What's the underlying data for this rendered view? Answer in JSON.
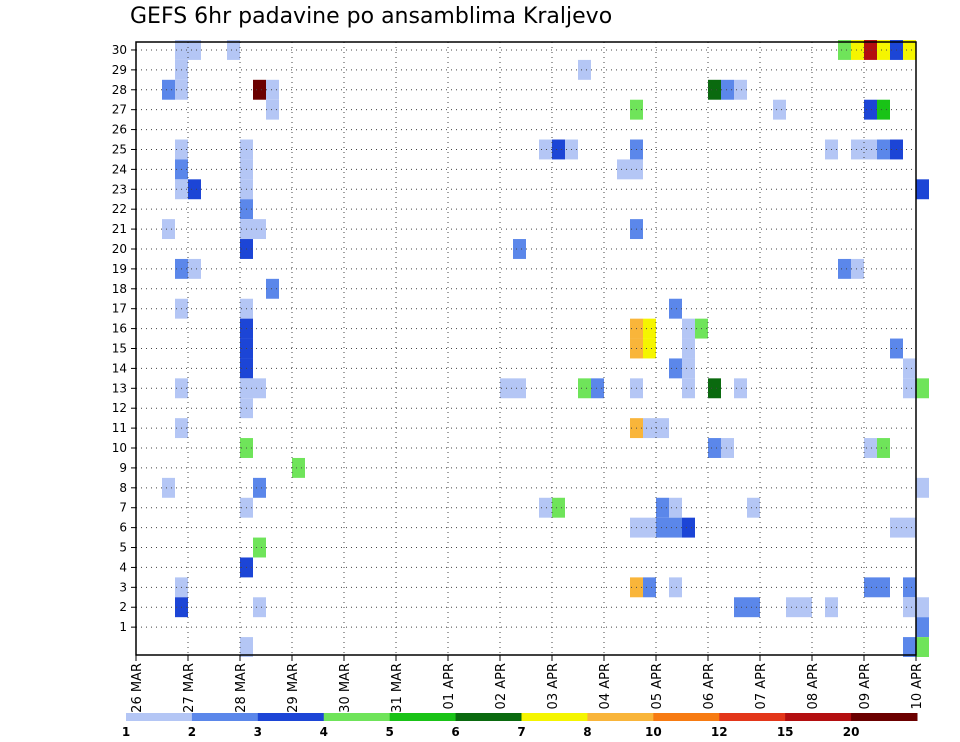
{
  "title": "GEFS 6hr padavine po ansamblima Kraljevo",
  "chart_data": {
    "type": "heatmap",
    "title": "GEFS 6hr padavine po ansamblima Kraljevo",
    "xlabel": "",
    "ylabel": "",
    "x_ticks": [
      "26 MAR",
      "27 MAR",
      "28 MAR",
      "29 MAR",
      "30 MAR",
      "31 MAR",
      "01 APR",
      "02 APR",
      "03 APR",
      "04 APR",
      "05 APR",
      "06 APR",
      "07 APR",
      "08 APR",
      "09 APR",
      "10 APR"
    ],
    "y_ticks": [
      1,
      2,
      3,
      4,
      5,
      6,
      7,
      8,
      9,
      10,
      11,
      12,
      13,
      14,
      15,
      16,
      17,
      18,
      19,
      20,
      21,
      22,
      23,
      24,
      25,
      26,
      27,
      28,
      29,
      30
    ],
    "ylim": [
      0,
      30
    ],
    "steps_per_day": 4,
    "grid": true,
    "legend": {
      "placement": "bottom",
      "labels": [
        "1",
        "2",
        "3",
        "4",
        "5",
        "6",
        "7",
        "8",
        "10",
        "12",
        "15",
        "20"
      ],
      "colors": [
        "#b4c6f5",
        "#5b87ea",
        "#1c45d6",
        "#6fe45a",
        "#19c317",
        "#0a6a0f",
        "#f5f500",
        "#f9b53a",
        "#f77b12",
        "#e3361a",
        "#b30e10",
        "#6b0000"
      ]
    },
    "cells": [
      {
        "t": 3,
        "m": 30,
        "v": 1.5
      },
      {
        "t": 4,
        "m": 30,
        "v": 1.5
      },
      {
        "t": 7,
        "m": 30,
        "v": 1.5
      },
      {
        "t": 54,
        "m": 30,
        "v": 4.5
      },
      {
        "t": 55,
        "m": 30,
        "v": 7.5
      },
      {
        "t": 56,
        "m": 30,
        "v": 16
      },
      {
        "t": 57,
        "m": 30,
        "v": 7.5
      },
      {
        "t": 58,
        "m": 30,
        "v": 3.5
      },
      {
        "t": 59,
        "m": 30,
        "v": 7.5
      },
      {
        "t": 3,
        "m": 29,
        "v": 1.5
      },
      {
        "t": 34,
        "m": 29,
        "v": 1.5
      },
      {
        "t": 2,
        "m": 28,
        "v": 2.5
      },
      {
        "t": 3,
        "m": 28,
        "v": 1.5
      },
      {
        "t": 9,
        "m": 28,
        "v": 25
      },
      {
        "t": 10,
        "m": 28,
        "v": 1.5
      },
      {
        "t": 44,
        "m": 28,
        "v": 6.5
      },
      {
        "t": 45,
        "m": 28,
        "v": 2.5
      },
      {
        "t": 46,
        "m": 28,
        "v": 1.5
      },
      {
        "t": 10,
        "m": 27,
        "v": 1.5
      },
      {
        "t": 38,
        "m": 27,
        "v": 4.5
      },
      {
        "t": 49,
        "m": 27,
        "v": 1.5
      },
      {
        "t": 56,
        "m": 27,
        "v": 3.5
      },
      {
        "t": 57,
        "m": 27,
        "v": 5.5
      },
      {
        "t": 3,
        "m": 25,
        "v": 1.5
      },
      {
        "t": 8,
        "m": 25,
        "v": 1.5
      },
      {
        "t": 31,
        "m": 25,
        "v": 1.5
      },
      {
        "t": 32,
        "m": 25,
        "v": 3.5
      },
      {
        "t": 33,
        "m": 25,
        "v": 1.5
      },
      {
        "t": 38,
        "m": 25,
        "v": 2.5
      },
      {
        "t": 53,
        "m": 25,
        "v": 1.5
      },
      {
        "t": 55,
        "m": 25,
        "v": 1.5
      },
      {
        "t": 56,
        "m": 25,
        "v": 1.5
      },
      {
        "t": 57,
        "m": 25,
        "v": 2.5
      },
      {
        "t": 58,
        "m": 25,
        "v": 3.5
      },
      {
        "t": 3,
        "m": 24,
        "v": 2.5
      },
      {
        "t": 8,
        "m": 24,
        "v": 1.5
      },
      {
        "t": 37,
        "m": 24,
        "v": 1.5
      },
      {
        "t": 38,
        "m": 24,
        "v": 1.5
      },
      {
        "t": 3,
        "m": 23,
        "v": 1.5
      },
      {
        "t": 4,
        "m": 23,
        "v": 3.5
      },
      {
        "t": 8,
        "m": 23,
        "v": 1.5
      },
      {
        "t": 60,
        "m": 23,
        "v": 3.5
      },
      {
        "t": 8,
        "m": 22,
        "v": 2.5
      },
      {
        "t": 2,
        "m": 21,
        "v": 1.5
      },
      {
        "t": 8,
        "m": 21,
        "v": 1.5
      },
      {
        "t": 9,
        "m": 21,
        "v": 1.5
      },
      {
        "t": 38,
        "m": 21,
        "v": 2.5
      },
      {
        "t": 8,
        "m": 20,
        "v": 3.5
      },
      {
        "t": 29,
        "m": 20,
        "v": 2.5
      },
      {
        "t": 3,
        "m": 19,
        "v": 2.5
      },
      {
        "t": 4,
        "m": 19,
        "v": 1.5
      },
      {
        "t": 54,
        "m": 19,
        "v": 2.5
      },
      {
        "t": 55,
        "m": 19,
        "v": 1.5
      },
      {
        "t": 10,
        "m": 18,
        "v": 2.5
      },
      {
        "t": 3,
        "m": 17,
        "v": 1.5
      },
      {
        "t": 8,
        "m": 17,
        "v": 1.5
      },
      {
        "t": 41,
        "m": 17,
        "v": 2.5
      },
      {
        "t": 8,
        "m": 16,
        "v": 3.5
      },
      {
        "t": 38,
        "m": 16,
        "v": 9
      },
      {
        "t": 39,
        "m": 16,
        "v": 7.5
      },
      {
        "t": 42,
        "m": 16,
        "v": 1.5
      },
      {
        "t": 43,
        "m": 16,
        "v": 4.5
      },
      {
        "t": 8,
        "m": 15,
        "v": 3.5
      },
      {
        "t": 38,
        "m": 15,
        "v": 9
      },
      {
        "t": 39,
        "m": 15,
        "v": 7.5
      },
      {
        "t": 42,
        "m": 15,
        "v": 1.5
      },
      {
        "t": 58,
        "m": 15,
        "v": 2.5
      },
      {
        "t": 8,
        "m": 14,
        "v": 3.5
      },
      {
        "t": 41,
        "m": 14,
        "v": 2.5
      },
      {
        "t": 42,
        "m": 14,
        "v": 1.5
      },
      {
        "t": 59,
        "m": 14,
        "v": 1.5
      },
      {
        "t": 3,
        "m": 13,
        "v": 1.5
      },
      {
        "t": 8,
        "m": 13,
        "v": 1.5
      },
      {
        "t": 9,
        "m": 13,
        "v": 1.5
      },
      {
        "t": 28,
        "m": 13,
        "v": 1.5
      },
      {
        "t": 29,
        "m": 13,
        "v": 1.5
      },
      {
        "t": 34,
        "m": 13,
        "v": 4.5
      },
      {
        "t": 35,
        "m": 13,
        "v": 2.5
      },
      {
        "t": 38,
        "m": 13,
        "v": 1.5
      },
      {
        "t": 42,
        "m": 13,
        "v": 1.5
      },
      {
        "t": 44,
        "m": 13,
        "v": 6.5
      },
      {
        "t": 46,
        "m": 13,
        "v": 1.5
      },
      {
        "t": 59,
        "m": 13,
        "v": 1.5
      },
      {
        "t": 60,
        "m": 13,
        "v": 4.5
      },
      {
        "t": 8,
        "m": 12,
        "v": 1.5
      },
      {
        "t": 3,
        "m": 11,
        "v": 1.5
      },
      {
        "t": 38,
        "m": 11,
        "v": 9
      },
      {
        "t": 39,
        "m": 11,
        "v": 1.5
      },
      {
        "t": 40,
        "m": 11,
        "v": 1.5
      },
      {
        "t": 8,
        "m": 10,
        "v": 4.5
      },
      {
        "t": 44,
        "m": 10,
        "v": 2.5
      },
      {
        "t": 45,
        "m": 10,
        "v": 1.5
      },
      {
        "t": 56,
        "m": 10,
        "v": 1.5
      },
      {
        "t": 57,
        "m": 10,
        "v": 4.5
      },
      {
        "t": 12,
        "m": 9,
        "v": 4.5
      },
      {
        "t": 2,
        "m": 8,
        "v": 1.5
      },
      {
        "t": 9,
        "m": 8,
        "v": 2.5
      },
      {
        "t": 60,
        "m": 8,
        "v": 1.5
      },
      {
        "t": 8,
        "m": 7,
        "v": 1.5
      },
      {
        "t": 31,
        "m": 7,
        "v": 1.5
      },
      {
        "t": 32,
        "m": 7,
        "v": 4.5
      },
      {
        "t": 40,
        "m": 7,
        "v": 2.5
      },
      {
        "t": 41,
        "m": 7,
        "v": 1.5
      },
      {
        "t": 47,
        "m": 7,
        "v": 1.5
      },
      {
        "t": 38,
        "m": 6,
        "v": 1.5
      },
      {
        "t": 39,
        "m": 6,
        "v": 1.5
      },
      {
        "t": 40,
        "m": 6,
        "v": 2.5
      },
      {
        "t": 41,
        "m": 6,
        "v": 2.5
      },
      {
        "t": 42,
        "m": 6,
        "v": 3.5
      },
      {
        "t": 58,
        "m": 6,
        "v": 1.5
      },
      {
        "t": 59,
        "m": 6,
        "v": 1.5
      },
      {
        "t": 9,
        "m": 5,
        "v": 4.5
      },
      {
        "t": 8,
        "m": 4,
        "v": 3.5
      },
      {
        "t": 3,
        "m": 3,
        "v": 1.5
      },
      {
        "t": 38,
        "m": 3,
        "v": 9
      },
      {
        "t": 39,
        "m": 3,
        "v": 2.5
      },
      {
        "t": 41,
        "m": 3,
        "v": 1.5
      },
      {
        "t": 56,
        "m": 3,
        "v": 2.5
      },
      {
        "t": 57,
        "m": 3,
        "v": 2.5
      },
      {
        "t": 59,
        "m": 3,
        "v": 2.5
      },
      {
        "t": 3,
        "m": 2,
        "v": 3.5
      },
      {
        "t": 9,
        "m": 2,
        "v": 1.5
      },
      {
        "t": 46,
        "m": 2,
        "v": 2.5
      },
      {
        "t": 47,
        "m": 2,
        "v": 2.5
      },
      {
        "t": 50,
        "m": 2,
        "v": 1.5
      },
      {
        "t": 51,
        "m": 2,
        "v": 1.5
      },
      {
        "t": 53,
        "m": 2,
        "v": 1.5
      },
      {
        "t": 59,
        "m": 2,
        "v": 1.5
      },
      {
        "t": 60,
        "m": 2,
        "v": 1.5
      },
      {
        "t": 60,
        "m": 1,
        "v": 2.5
      },
      {
        "t": 8,
        "m": 0,
        "v": 1.5
      },
      {
        "t": 59,
        "m": 0,
        "v": 2.5
      },
      {
        "t": 60,
        "m": 0,
        "v": 4.5
      }
    ]
  }
}
